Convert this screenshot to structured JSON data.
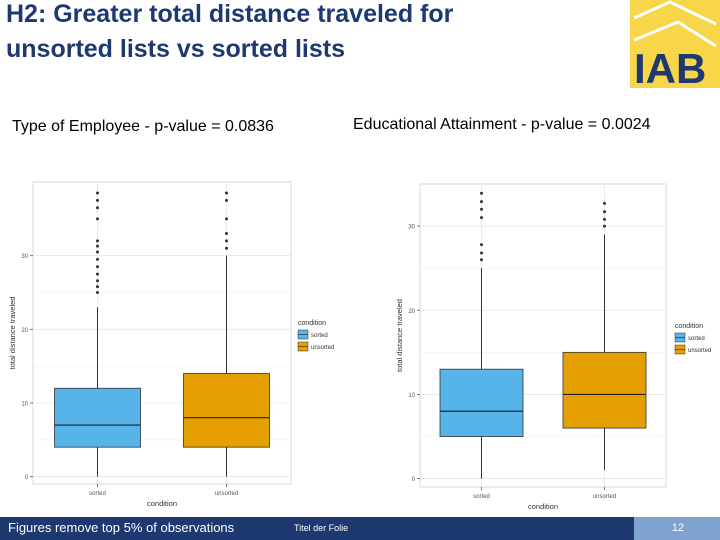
{
  "slide": {
    "title_line1": "H2: Greater total distance traveled for",
    "title_line2": "unsorted lists vs sorted lists",
    "logo_text": "IAB",
    "footnote": "Figures remove top 5% of observations",
    "footer_title": "Titel der Folie",
    "page_number": "12"
  },
  "colors": {
    "sorted": "#56b4e9",
    "unsorted": "#e69f00",
    "title": "#1e3870",
    "logo_yellow": "#f7d64a"
  },
  "charts": [
    {
      "subtitle": "Type of Employee - p-value = 0.0836"
    },
    {
      "subtitle": "Educational Attainment - p-value = 0.0024"
    }
  ],
  "chart_data": [
    {
      "type": "box",
      "xlabel": "condition",
      "ylabel": "total distance traveled",
      "categories": [
        "sorted",
        "unsorted"
      ],
      "ylim": [
        -1,
        40
      ],
      "yticks": [
        0,
        10,
        20,
        30
      ],
      "legend": {
        "title": "condition",
        "entries": [
          "sorted",
          "unsorted"
        ],
        "placement": "right"
      },
      "grid": true,
      "series": [
        {
          "name": "sorted",
          "min": 0,
          "q1": 4,
          "median": 7,
          "q3": 12,
          "max": 23,
          "outliers": [
            25,
            25.8,
            26.6,
            27.5,
            28.5,
            29.5,
            30.5,
            31.3,
            32,
            35,
            36.5,
            37.5,
            38.5
          ]
        },
        {
          "name": "unsorted",
          "min": 0,
          "q1": 4,
          "median": 8,
          "q3": 14,
          "max": 30,
          "outliers": [
            31,
            32,
            33,
            35,
            37.5,
            38.5
          ]
        }
      ]
    },
    {
      "type": "box",
      "xlabel": "condition",
      "ylabel": "total distance traveled",
      "categories": [
        "sorted",
        "unsorted"
      ],
      "ylim": [
        -1,
        35
      ],
      "yticks": [
        0,
        10,
        20,
        30
      ],
      "legend": {
        "title": "condition",
        "entries": [
          "sorted",
          "unsorted"
        ],
        "placement": "right"
      },
      "grid": true,
      "series": [
        {
          "name": "sorted",
          "min": 0,
          "q1": 5,
          "median": 8,
          "q3": 13,
          "max": 25,
          "outliers": [
            26,
            26.8,
            27.8,
            31,
            32,
            32.9,
            33.9
          ]
        },
        {
          "name": "unsorted",
          "min": 1,
          "q1": 6,
          "median": 10,
          "q3": 15,
          "max": 29,
          "outliers": [
            30,
            30.8,
            31.7,
            32.7
          ]
        }
      ]
    }
  ]
}
